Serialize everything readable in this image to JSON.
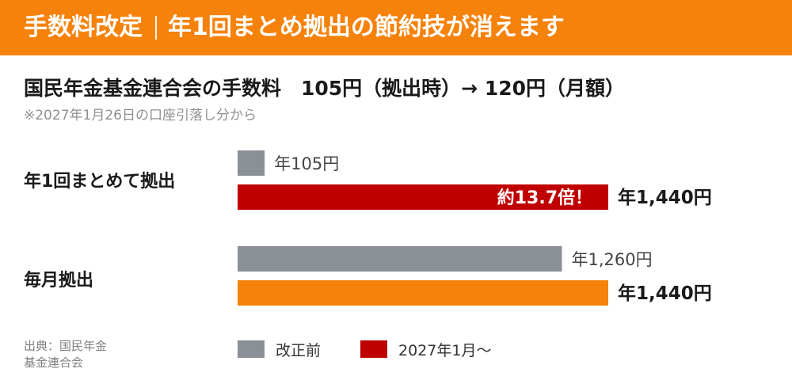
{
  "header": {
    "title_left": "手数料改定",
    "title_right": "年1回まとめ拠出の節約技が消えます"
  },
  "subtitle": "国民年金基金連合会の手数料　105円（拠出時）→ 120円（月額）",
  "note": "※2027年1月26日の口座引落し分から",
  "source": {
    "line1": "出典：国民年金",
    "line2": "基金連合会"
  },
  "colors": {
    "accent": "#f5820a",
    "before": "#8b8f96",
    "after_annual": "#c00000",
    "after_monthly": "#f5820a"
  },
  "chart_data": {
    "type": "bar",
    "orientation": "horizontal",
    "categories": [
      "年1回まとめて拠出",
      "毎月拠出"
    ],
    "series": [
      {
        "name": "改正前",
        "values": [
          105,
          1260
        ],
        "labels": [
          "年105円",
          "年1,260円"
        ]
      },
      {
        "name": "2027年1月〜",
        "values": [
          1440,
          1440
        ],
        "labels": [
          "年1,440円",
          "年1,440円"
        ]
      }
    ],
    "annotation": "約13.7倍！",
    "xlim": [
      0,
      1440
    ],
    "grid": false,
    "legend": "bottom"
  },
  "legend": [
    {
      "label": "改正前",
      "color": "#8b8f96"
    },
    {
      "label": "2027年1月〜",
      "color": "#c00000"
    }
  ]
}
